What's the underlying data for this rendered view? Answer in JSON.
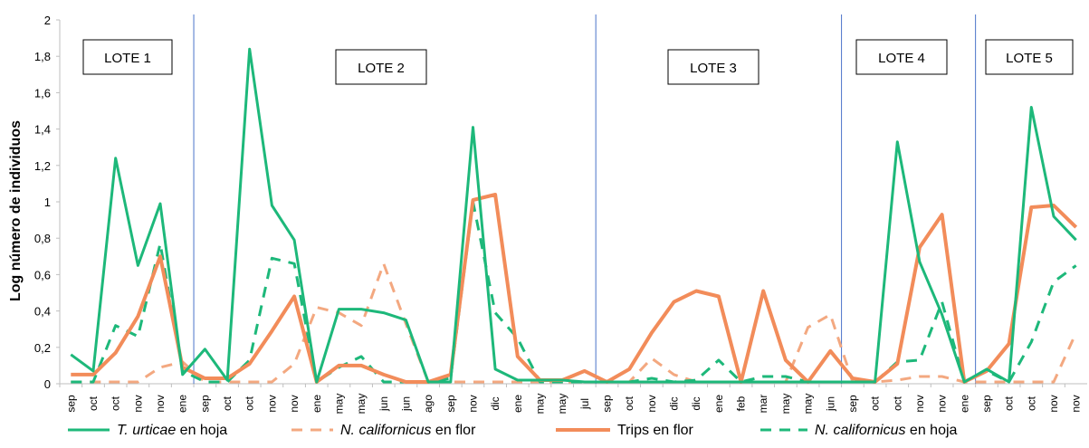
{
  "chart_data": {
    "type": "line",
    "ylabel": "Log número de individuos",
    "ylim": [
      0,
      2
    ],
    "yticks": [
      0,
      0.2,
      0.4,
      0.6,
      0.8,
      1,
      1.2,
      1.4,
      1.6,
      1.8,
      2
    ],
    "ytick_labels": [
      "0",
      "0,2",
      "0,4",
      "0,6",
      "0,8",
      "1",
      "1,2",
      "1,4",
      "1,6",
      "1,8",
      "2"
    ],
    "categories": [
      "sep",
      "oct",
      "oct",
      "nov",
      "nov",
      "ene",
      "sep",
      "oct",
      "oct",
      "nov",
      "nov",
      "ene",
      "may",
      "may",
      "jun",
      "jun",
      "ago",
      "sep",
      "nov",
      "dic",
      "ene",
      "may",
      "may",
      "jul",
      "sep",
      "oct",
      "nov",
      "dic",
      "dic",
      "ene",
      "feb",
      "mar",
      "may",
      "may",
      "jun",
      "sep",
      "oct",
      "oct",
      "nov",
      "nov",
      "ene",
      "sep",
      "oct",
      "oct",
      "nov",
      "nov"
    ],
    "lots": [
      {
        "label": "LOTE 1"
      },
      {
        "label": "LOTE 2"
      },
      {
        "label": "LOTE 3"
      },
      {
        "label": "LOTE 4"
      },
      {
        "label": "LOTE 5"
      }
    ],
    "series": [
      {
        "name": "T. urticae en hoja",
        "color": "#1db87a",
        "style": "solid",
        "values": [
          0.16,
          0.07,
          1.24,
          0.65,
          0.99,
          0.05,
          0.19,
          0.02,
          1.84,
          0.98,
          0.79,
          0.01,
          0.41,
          0.41,
          0.39,
          0.35,
          0.01,
          0.01,
          1.41,
          0.08,
          0.02,
          0.02,
          0.02,
          0.01,
          0.01,
          0.01,
          0.01,
          0.01,
          0.01,
          0.01,
          0.01,
          0.01,
          0.01,
          0.01,
          0.01,
          0.01,
          0.01,
          1.33,
          0.67,
          0.38,
          0.01,
          0.08,
          0.01,
          1.52,
          0.92,
          0.79
        ]
      },
      {
        "name": "N. californicus en flor",
        "color": "#f3a880",
        "style": "dashed",
        "values": [
          0.01,
          0.01,
          0.01,
          0.01,
          0.09,
          0.12,
          0.01,
          0.01,
          0.01,
          0.01,
          0.11,
          0.42,
          0.39,
          0.32,
          0.66,
          0.33,
          0.01,
          0.01,
          0.01,
          0.01,
          0.01,
          0.01,
          0.01,
          0.01,
          0.01,
          0.01,
          0.14,
          0.05,
          0.01,
          0.01,
          0.01,
          0.01,
          0.01,
          0.31,
          0.38,
          0.01,
          0.01,
          0.02,
          0.04,
          0.04,
          0.01,
          0.01,
          0.01,
          0.01,
          0.01,
          0.28
        ]
      },
      {
        "name": "Trips en flor",
        "color": "#f28c5a",
        "style": "solid",
        "values": [
          0.05,
          0.05,
          0.17,
          0.37,
          0.7,
          0.09,
          0.03,
          0.03,
          0.11,
          0.29,
          0.48,
          0.01,
          0.1,
          0.1,
          0.05,
          0.01,
          0.01,
          0.05,
          1.01,
          1.04,
          0.15,
          0.02,
          0.02,
          0.07,
          0.01,
          0.08,
          0.28,
          0.45,
          0.51,
          0.48,
          0.01,
          0.51,
          0.13,
          0.01,
          0.18,
          0.03,
          0.01,
          0.11,
          0.75,
          0.93,
          0.01,
          0.07,
          0.22,
          0.97,
          0.98,
          0.86
        ]
      },
      {
        "name": "N. californicus en hoja",
        "color": "#1db87a",
        "style": "dashed",
        "values": [
          0.01,
          0.01,
          0.32,
          0.26,
          0.77,
          0.07,
          0.01,
          0.01,
          0.13,
          0.69,
          0.66,
          0.01,
          0.09,
          0.15,
          0.01,
          0.01,
          0.01,
          0.03,
          1.0,
          0.39,
          0.25,
          0.01,
          0.01,
          0.01,
          0.01,
          0.01,
          0.03,
          0.01,
          0.02,
          0.13,
          0.01,
          0.04,
          0.04,
          0.01,
          0.01,
          0.01,
          0.01,
          0.12,
          0.13,
          0.45,
          0.01,
          0.07,
          0.01,
          0.23,
          0.56,
          0.65
        ]
      }
    ]
  }
}
